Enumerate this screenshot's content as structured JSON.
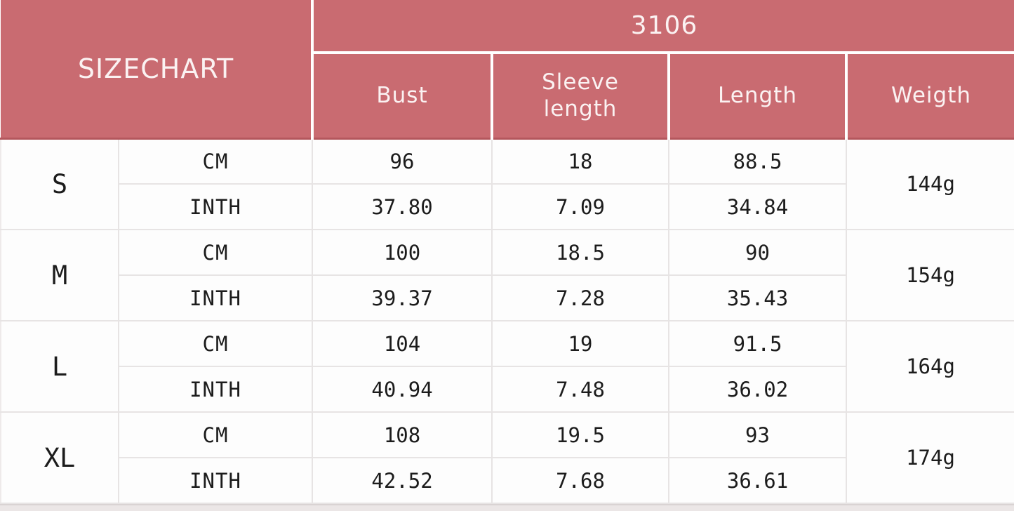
{
  "header": {
    "title": "SIZECHART",
    "model": "3106",
    "columns": [
      "Bust",
      "Sleeve length",
      "Length",
      "Weigth"
    ]
  },
  "units": {
    "cm": "CM",
    "inth": "INTH"
  },
  "sizes": [
    {
      "label": "S",
      "cm": [
        "96",
        "18",
        "88.5"
      ],
      "inth": [
        "37.80",
        "7.09",
        "34.84"
      ],
      "weight": "144g"
    },
    {
      "label": "M",
      "cm": [
        "100",
        "18.5",
        "90"
      ],
      "inth": [
        "39.37",
        "7.28",
        "35.43"
      ],
      "weight": "154g"
    },
    {
      "label": "L",
      "cm": [
        "104",
        "19",
        "91.5"
      ],
      "inth": [
        "40.94",
        "7.48",
        "36.02"
      ],
      "weight": "164g"
    },
    {
      "label": "XL",
      "cm": [
        "108",
        "19.5",
        "93"
      ],
      "inth": [
        "42.52",
        "7.68",
        "36.61"
      ],
      "weight": "174g"
    }
  ],
  "colors": {
    "header_bg": "#c96b71",
    "header_text": "#fbf2f2",
    "header_underline": "#b4575d",
    "grid_line": "#e7e4e4",
    "body_text": "#1c1c1c",
    "body_bg": "#fdfdfd"
  }
}
